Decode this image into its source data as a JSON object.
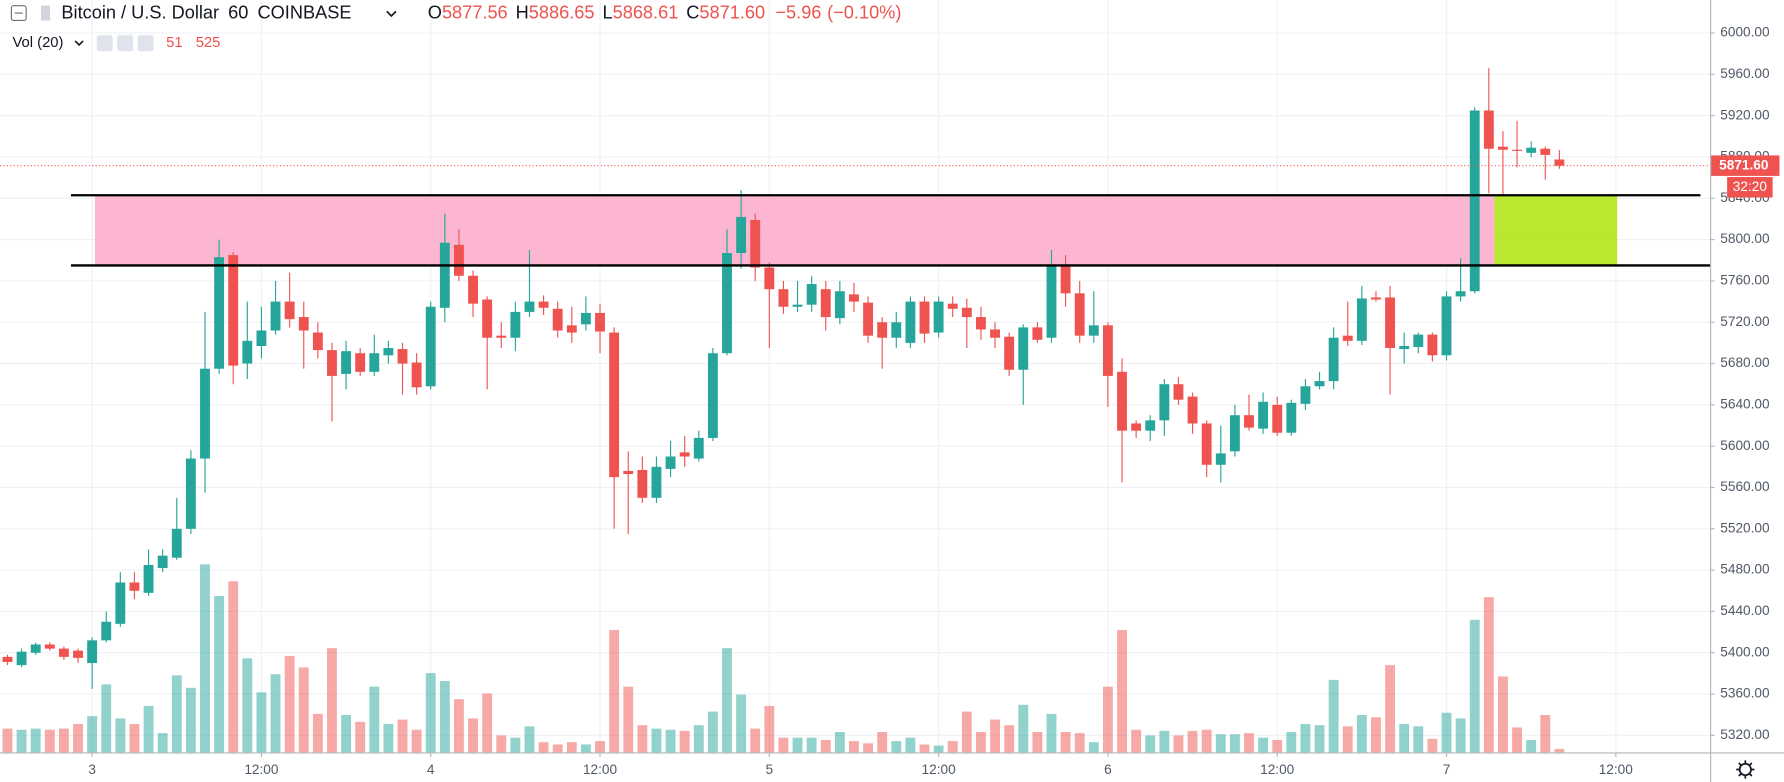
{
  "chart_data": {
    "type": "candlestick",
    "symbol": "Bitcoin / U.S. Dollar",
    "interval": "60",
    "exchange": "COINBASE",
    "ohlc_legend": [
      {
        "key": "O",
        "label": "5877.56"
      },
      {
        "key": "H",
        "label": "5886.65"
      },
      {
        "key": "L",
        "label": "5868.61"
      },
      {
        "key": "C",
        "label": "5871.60"
      }
    ],
    "change": {
      "value": -5.96,
      "label": "−5.96"
    },
    "change_pct": {
      "value": -0.1,
      "label": "(−0.10%)"
    },
    "volume_name": "Vol (20)",
    "volume_ma": 525,
    "up_color": "#26a69a",
    "down_color": "#ef5350",
    "x": [
      -6,
      -5,
      -4,
      -3,
      -2,
      -1,
      0,
      1,
      2,
      3,
      4,
      5,
      6,
      7,
      8,
      9,
      10,
      11,
      12,
      13,
      14,
      15,
      16,
      17,
      18,
      19,
      20,
      21,
      22,
      23,
      24,
      25,
      26,
      27,
      28,
      29,
      30,
      31,
      32,
      33,
      34,
      35,
      36,
      37,
      38,
      39,
      40,
      41,
      42,
      43,
      44,
      45,
      46,
      47,
      48,
      49,
      50,
      51,
      52,
      53,
      54,
      55,
      56,
      57,
      58,
      59,
      60,
      61,
      62,
      63,
      64,
      65,
      66,
      67,
      68,
      69,
      70,
      71,
      72,
      73,
      74,
      75,
      76,
      77,
      78,
      79,
      80,
      81,
      82,
      83,
      84,
      85,
      86,
      87,
      88,
      89,
      90,
      91,
      92,
      93,
      94,
      95,
      96,
      97,
      98,
      99,
      100,
      101,
      102,
      103,
      104
    ],
    "open": [
      5396,
      5388,
      5400,
      5408,
      5404,
      5402,
      5390,
      5412,
      5428,
      5468,
      5458,
      5482,
      5492,
      5520,
      5588,
      5675,
      5785,
      5680,
      5697,
      5712,
      5740,
      5725,
      5710,
      5693,
      5670,
      5690,
      5672,
      5688,
      5694,
      5681,
      5658,
      5734,
      5795,
      5765,
      5742,
      5707,
      5705,
      5730,
      5740,
      5733,
      5717,
      5718,
      5729,
      5710,
      5576,
      5577,
      5550,
      5578,
      5594,
      5588,
      5608,
      5690,
      5787,
      5819,
      5773,
      5752,
      5735,
      5737,
      5752,
      5724,
      5747,
      5739,
      5720,
      5705,
      5700,
      5740,
      5710,
      5738,
      5734,
      5725,
      5713,
      5706,
      5674,
      5715,
      5705,
      5775,
      5748,
      5707,
      5717,
      5672,
      5622,
      5615,
      5625,
      5660,
      5648,
      5622,
      5582,
      5595,
      5630,
      5617,
      5640,
      5613,
      5641,
      5658,
      5663,
      5707,
      5702,
      5744,
      5744,
      5694,
      5696,
      5708,
      5688,
      5745,
      5750,
      5925,
      5890,
      5887,
      5884,
      5888,
      5877.56
    ],
    "high": [
      5398,
      5404,
      5410,
      5410,
      5406,
      5404,
      5415,
      5440,
      5478,
      5478,
      5500,
      5500,
      5550,
      5596,
      5730,
      5800,
      5788,
      5740,
      5735,
      5760,
      5768,
      5740,
      5720,
      5700,
      5702,
      5695,
      5708,
      5702,
      5700,
      5690,
      5740,
      5825,
      5810,
      5770,
      5745,
      5720,
      5740,
      5790,
      5746,
      5740,
      5735,
      5745,
      5738,
      5715,
      5595,
      5590,
      5590,
      5605,
      5610,
      5615,
      5695,
      5810,
      5848,
      5825,
      5778,
      5760,
      5760,
      5765,
      5760,
      5760,
      5758,
      5745,
      5725,
      5730,
      5745,
      5745,
      5745,
      5745,
      5743,
      5735,
      5720,
      5710,
      5718,
      5720,
      5790,
      5785,
      5760,
      5750,
      5720,
      5685,
      5625,
      5630,
      5665,
      5667,
      5652,
      5625,
      5620,
      5640,
      5650,
      5652,
      5648,
      5645,
      5665,
      5672,
      5715,
      5740,
      5755,
      5750,
      5755,
      5710,
      5710,
      5710,
      5750,
      5782,
      5928,
      5966,
      5905,
      5915,
      5895,
      5890,
      5886.65
    ],
    "low": [
      5388,
      5386,
      5398,
      5402,
      5393,
      5390,
      5365,
      5410,
      5425,
      5452,
      5455,
      5478,
      5490,
      5515,
      5555,
      5670,
      5660,
      5665,
      5685,
      5708,
      5715,
      5675,
      5685,
      5624,
      5655,
      5668,
      5668,
      5680,
      5650,
      5650,
      5655,
      5720,
      5760,
      5725,
      5655,
      5695,
      5692,
      5725,
      5727,
      5705,
      5700,
      5712,
      5690,
      5520,
      5515,
      5545,
      5545,
      5570,
      5580,
      5585,
      5605,
      5688,
      5772,
      5760,
      5695,
      5728,
      5730,
      5730,
      5712,
      5718,
      5730,
      5700,
      5675,
      5695,
      5695,
      5700,
      5705,
      5725,
      5695,
      5703,
      5695,
      5668,
      5640,
      5700,
      5700,
      5735,
      5700,
      5700,
      5638,
      5565,
      5608,
      5605,
      5610,
      5640,
      5612,
      5570,
      5565,
      5590,
      5615,
      5612,
      5610,
      5610,
      5635,
      5655,
      5655,
      5697,
      5698,
      5740,
      5650,
      5680,
      5690,
      5682,
      5683,
      5740,
      5748,
      5845,
      5842,
      5870,
      5880,
      5858,
      5868.61
    ],
    "close": [
      5391,
      5401,
      5408,
      5404,
      5396,
      5395,
      5412,
      5430,
      5468,
      5460,
      5485,
      5494,
      5520,
      5588,
      5675,
      5783,
      5678,
      5702,
      5712,
      5740,
      5723,
      5712,
      5693,
      5668,
      5692,
      5672,
      5690,
      5695,
      5680,
      5657,
      5735,
      5797,
      5765,
      5738,
      5705,
      5705,
      5730,
      5740,
      5734,
      5712,
      5710,
      5729,
      5711,
      5570,
      5573,
      5550,
      5580,
      5590,
      5590,
      5608,
      5690,
      5787,
      5822,
      5773,
      5752,
      5735,
      5737,
      5757,
      5725,
      5750,
      5740,
      5707,
      5705,
      5720,
      5740,
      5709,
      5740,
      5733,
      5725,
      5713,
      5705,
      5674,
      5715,
      5703,
      5775,
      5748,
      5707,
      5717,
      5668,
      5615,
      5615,
      5625,
      5660,
      5645,
      5622,
      5582,
      5593,
      5630,
      5618,
      5643,
      5613,
      5642,
      5658,
      5663,
      5705,
      5702,
      5743,
      5742,
      5695,
      5697,
      5708,
      5688,
      5745,
      5750,
      5925,
      5888,
      5887,
      5886,
      5889,
      5882,
      5871.6
    ],
    "volume": [
      357,
      340,
      357,
      340,
      357,
      425,
      544,
      1020,
      510,
      425,
      697,
      289,
      1156,
      969,
      2822,
      2346,
      2567,
      1411,
      901,
      1173,
      1445,
      1275,
      578,
      1564,
      561,
      459,
      986,
      425,
      493,
      340,
      1190,
      1071,
      799,
      510,
      884,
      255,
      221,
      391,
      153,
      119,
      153,
      119,
      170,
      1836,
      986,
      408,
      357,
      340,
      323,
      408,
      612,
      1564,
      867,
      357,
      697,
      221,
      221,
      221,
      187,
      306,
      170,
      136,
      306,
      170,
      221,
      119,
      102,
      170,
      612,
      306,
      493,
      408,
      714,
      306,
      578,
      306,
      289,
      153,
      986,
      1836,
      340,
      255,
      323,
      255,
      323,
      340,
      272,
      272,
      289,
      221,
      187,
      306,
      425,
      408,
      1088,
      391,
      561,
      527,
      1309,
      425,
      391,
      204,
      595,
      510,
      1989,
      2329,
      1139,
      374,
      187,
      561,
      51
    ],
    "xlim": [
      -6.53,
      114.68
    ],
    "xticks": [
      {
        "value": 0,
        "label": "3"
      },
      {
        "value": 12,
        "label": "12:00"
      },
      {
        "value": 24,
        "label": "4"
      },
      {
        "value": 36,
        "label": "12:00"
      },
      {
        "value": 48,
        "label": "5"
      },
      {
        "value": 60,
        "label": "12:00"
      },
      {
        "value": 72,
        "label": "6"
      },
      {
        "value": 84,
        "label": "12:00"
      },
      {
        "value": 96,
        "label": "7"
      },
      {
        "value": 108,
        "label": "12:00"
      }
    ],
    "ylim": [
      5303.5,
      6032
    ],
    "yticks": [
      {
        "value": 5320,
        "label": "5320.00"
      },
      {
        "value": 5360,
        "label": "5360.00"
      },
      {
        "value": 5400,
        "label": "5400.00"
      },
      {
        "value": 5440,
        "label": "5440.00"
      },
      {
        "value": 5480,
        "label": "5480.00"
      },
      {
        "value": 5520,
        "label": "5520.00"
      },
      {
        "value": 5560,
        "label": "5560.00"
      },
      {
        "value": 5600,
        "label": "5600.00"
      },
      {
        "value": 5640,
        "label": "5640.00"
      },
      {
        "value": 5680,
        "label": "5680.00"
      },
      {
        "value": 5720,
        "label": "5720.00"
      },
      {
        "value": 5760,
        "label": "5760.00"
      },
      {
        "value": 5800,
        "label": "5800.00"
      },
      {
        "value": 5840,
        "label": "5840.00"
      },
      {
        "value": 5880,
        "label": "5880.00"
      },
      {
        "value": 5920,
        "label": "5920.00"
      },
      {
        "value": 5960,
        "label": "5960.00"
      },
      {
        "value": 6000,
        "label": "6000.00"
      }
    ],
    "grid": true,
    "last_price": {
      "value": 5871.6,
      "label": "5871.60"
    },
    "countdown": "32:20",
    "zones": [
      {
        "color": "#fdb0cd",
        "x": [
          0.2,
          99.4
        ],
        "y": [
          5775,
          5843
        ]
      },
      {
        "color": "#b4e61e",
        "x": [
          99.4,
          108.1
        ],
        "y": [
          5775,
          5843
        ]
      }
    ],
    "levels": [
      {
        "y": 5843,
        "x": [
          -1.5,
          114
        ]
      },
      {
        "y": 5775,
        "x": [
          -1.5,
          114.68
        ]
      }
    ]
  }
}
